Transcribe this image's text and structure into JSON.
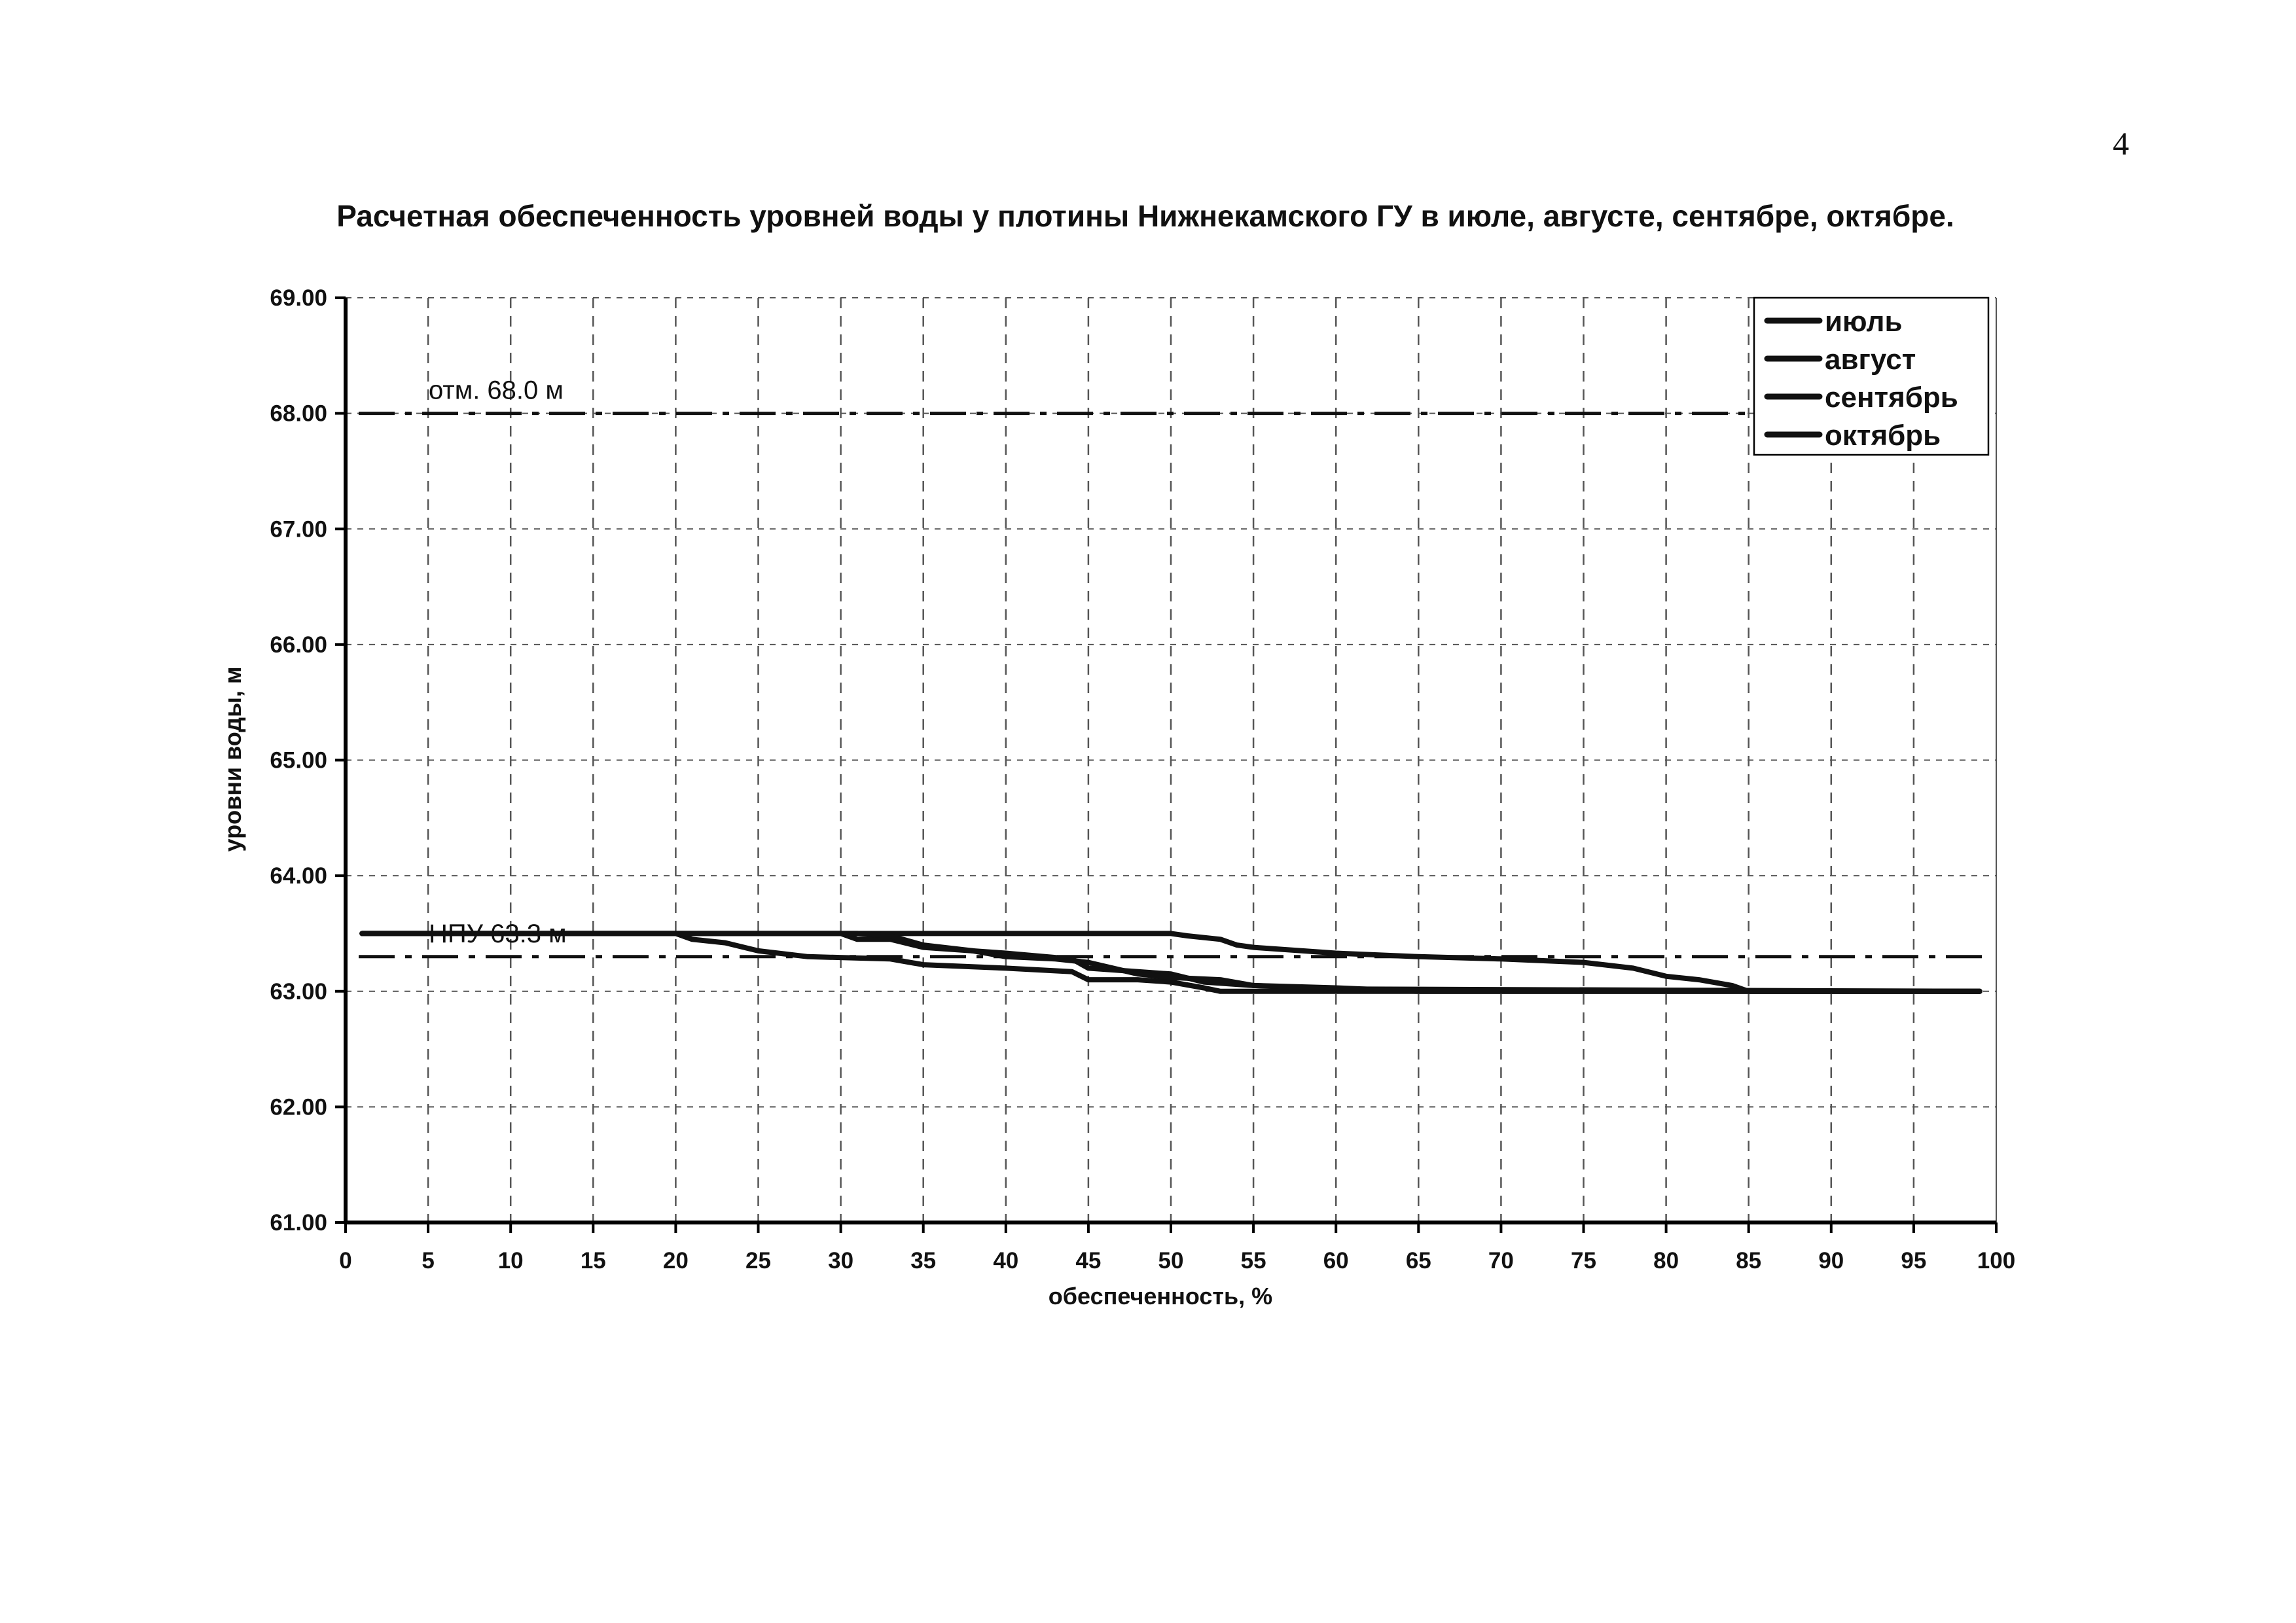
{
  "page_number": "4",
  "chart_data": {
    "type": "line",
    "title": "Расчетная обеспеченность уровней воды у плотины Нижнекамского ГУ в июле, августе, сентябре, октябре.",
    "xlabel": "обеспеченность, %",
    "ylabel": "уровни воды, м",
    "xlim": [
      0,
      100
    ],
    "ylim": [
      61.0,
      69.0
    ],
    "x_ticks": [
      "0",
      "5",
      "10",
      "15",
      "20",
      "25",
      "30",
      "35",
      "40",
      "45",
      "50",
      "55",
      "60",
      "65",
      "70",
      "75",
      "80",
      "85",
      "90",
      "95",
      "100"
    ],
    "y_ticks": [
      "61.00",
      "62.00",
      "63.00",
      "64.00",
      "65.00",
      "66.00",
      "67.00",
      "68.00",
      "69.00"
    ],
    "grid": true,
    "legend_position": "top-right",
    "colors": {
      "series": "#111111",
      "grid": "#555555",
      "axis": "#000000"
    },
    "reference_lines": [
      {
        "label": "отм. 68.0 м",
        "y": 68.0,
        "style": "dash-dot"
      },
      {
        "label": "НПУ 63.3 м",
        "y": 63.3,
        "style": "dash-dot"
      }
    ],
    "series": [
      {
        "name": "июль",
        "x": [
          1,
          20,
          50,
          51,
          53,
          54,
          55,
          60,
          65,
          70,
          75,
          78,
          80,
          82,
          84,
          85,
          99
        ],
        "y": [
          63.5,
          63.5,
          63.5,
          63.48,
          63.45,
          63.4,
          63.38,
          63.33,
          63.3,
          63.28,
          63.25,
          63.2,
          63.13,
          63.1,
          63.05,
          63.0,
          63.0
        ]
      },
      {
        "name": "август",
        "x": [
          1,
          30,
          31,
          33,
          35,
          40,
          44,
          45,
          48,
          50,
          52,
          55,
          60,
          99
        ],
        "y": [
          63.5,
          63.5,
          63.45,
          63.45,
          63.38,
          63.33,
          63.28,
          63.2,
          63.17,
          63.15,
          63.08,
          63.05,
          63.02,
          63.0
        ]
      },
      {
        "name": "сентябрь",
        "x": [
          1,
          20,
          21,
          23,
          25,
          28,
          33,
          35,
          40,
          44,
          45,
          48,
          50,
          52,
          53,
          99
        ],
        "y": [
          63.5,
          63.5,
          63.45,
          63.42,
          63.35,
          63.3,
          63.28,
          63.23,
          63.2,
          63.17,
          63.1,
          63.1,
          63.08,
          63.03,
          63.0,
          63.0
        ]
      },
      {
        "name": "октябрь",
        "x": [
          1,
          31,
          33,
          35,
          38,
          40,
          43,
          45,
          48,
          50,
          53,
          55,
          60,
          65,
          99
        ],
        "y": [
          63.5,
          63.5,
          63.48,
          63.4,
          63.35,
          63.3,
          63.28,
          63.25,
          63.15,
          63.12,
          63.1,
          63.05,
          63.03,
          63.0,
          63.0
        ]
      }
    ]
  }
}
